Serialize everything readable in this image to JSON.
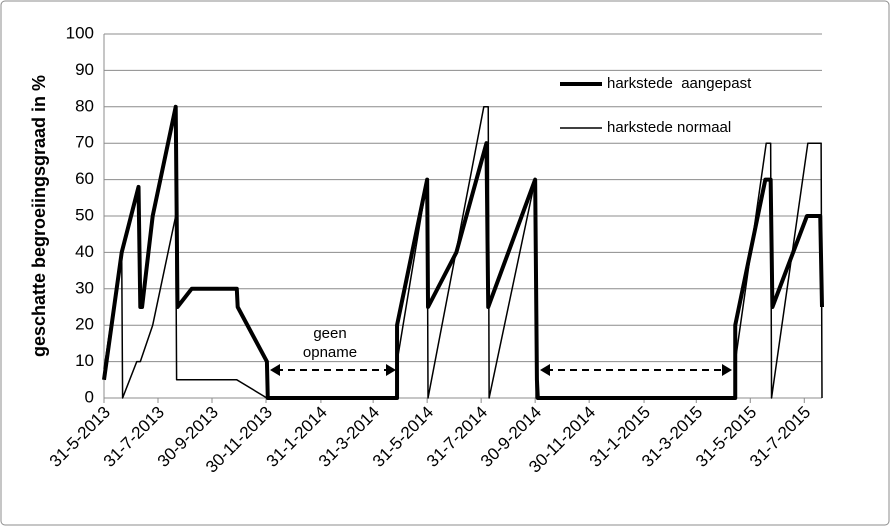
{
  "chart_data": {
    "type": "line",
    "y_label": "geschatte begroeiingsgraad in %",
    "annotation": "geen opname",
    "ylim": [
      0,
      100
    ],
    "yticks": [
      0,
      10,
      20,
      30,
      40,
      50,
      60,
      70,
      80,
      90,
      100
    ],
    "grid": true,
    "xlim": [
      "31-5-2013",
      "20-8-2015"
    ],
    "xticks": [
      "31-5-2013",
      "31-7-2013",
      "30-9-2013",
      "30-11-2013",
      "31-1-2014",
      "31-3-2014",
      "31-5-2014",
      "31-7-2014",
      "30-9-2014",
      "30-11-2014",
      "31-1-2015",
      "31-3-2015",
      "31-5-2015",
      "31-7-2015"
    ],
    "series": [
      {
        "name": "harkstede  aangepast",
        "color": "#000000",
        "width": 4,
        "x": [
          "31-5-2013",
          "20-6-2013",
          "9-7-2013",
          "11-7-2013",
          "13-7-2013",
          "25-7-2013",
          "20-8-2013",
          "22-8-2013",
          "7-9-2013",
          "28-10-2013",
          "29-10-2013",
          "1-12-2013",
          "2-12-2013",
          "27-4-2014",
          "27-4-2014",
          "31-5-2014",
          "1-6-2014",
          "3-7-2014",
          "6-8-2014",
          "8-8-2014",
          "30-9-2014",
          "2-10-2014",
          "3-10-2014",
          "14-5-2015",
          "14-5-2015",
          "17-6-2015",
          "23-6-2015",
          "25-6-2015",
          "3-8-2015",
          "18-8-2015",
          "20-8-2015"
        ],
        "values": [
          5,
          40,
          58,
          25,
          25,
          50,
          80,
          25,
          30,
          30,
          25,
          10,
          0,
          0,
          20,
          60,
          25,
          40,
          70,
          25,
          60,
          5,
          0,
          0,
          20,
          60,
          60,
          25,
          50,
          50,
          25
        ]
      },
      {
        "name": "harkstede normaal",
        "color": "#000000",
        "width": 1.5,
        "x": [
          "31-5-2013",
          "20-6-2013",
          "21-6-2013",
          "7-7-2013",
          "11-7-2013",
          "25-7-2013",
          "20-8-2013",
          "21-8-2013",
          "28-10-2013",
          "1-12-2013",
          "26-4-2014",
          "27-4-2014",
          "31-5-2014",
          "1-6-2014",
          "3-8-2014",
          "8-8-2014",
          "9-8-2014",
          "30-9-2014",
          "1-10-2014",
          "14-5-2015",
          "14-5-2015",
          "18-6-2015",
          "23-6-2015",
          "24-6-2015",
          "4-8-2015",
          "19-8-2015",
          "20-8-2015"
        ],
        "values": [
          8,
          40,
          0,
          10,
          10,
          20,
          50,
          5,
          5,
          0,
          0,
          10,
          60,
          0,
          80,
          80,
          0,
          60,
          0,
          0,
          10,
          70,
          70,
          0,
          70,
          70,
          0
        ]
      }
    ]
  }
}
